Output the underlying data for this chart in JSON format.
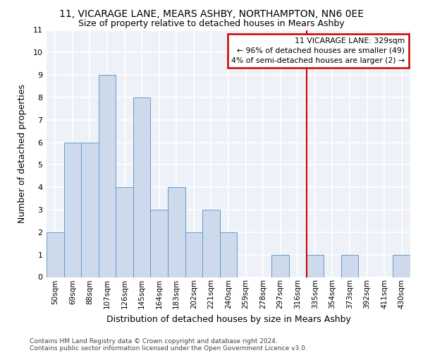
{
  "title1": "11, VICARAGE LANE, MEARS ASHBY, NORTHAMPTON, NN6 0EE",
  "title2": "Size of property relative to detached houses in Mears Ashby",
  "xlabel": "Distribution of detached houses by size in Mears Ashby",
  "ylabel": "Number of detached properties",
  "categories": [
    "50sqm",
    "69sqm",
    "88sqm",
    "107sqm",
    "126sqm",
    "145sqm",
    "164sqm",
    "183sqm",
    "202sqm",
    "221sqm",
    "240sqm",
    "259sqm",
    "278sqm",
    "297sqm",
    "316sqm",
    "335sqm",
    "354sqm",
    "373sqm",
    "392sqm",
    "411sqm",
    "430sqm"
  ],
  "values": [
    2,
    6,
    6,
    9,
    4,
    8,
    3,
    4,
    2,
    3,
    2,
    0,
    0,
    1,
    0,
    1,
    0,
    1,
    0,
    0,
    1
  ],
  "bar_color": "#ccdaeb",
  "bar_edge_color": "#6699cc",
  "background_color": "#eef2f8",
  "grid_color": "#ffffff",
  "vline_x_index": 14,
  "vline_color": "#cc0000",
  "annotation_text": "11 VICARAGE LANE: 329sqm\n← 96% of detached houses are smaller (49)\n4% of semi-detached houses are larger (2) →",
  "annotation_box_color": "#ffffff",
  "annotation_box_edge_color": "#cc0000",
  "ylim": [
    0,
    11
  ],
  "yticks": [
    0,
    1,
    2,
    3,
    4,
    5,
    6,
    7,
    8,
    9,
    10,
    11
  ],
  "footnote1": "Contains HM Land Registry data © Crown copyright and database right 2024.",
  "footnote2": "Contains public sector information licensed under the Open Government Licence v3.0."
}
